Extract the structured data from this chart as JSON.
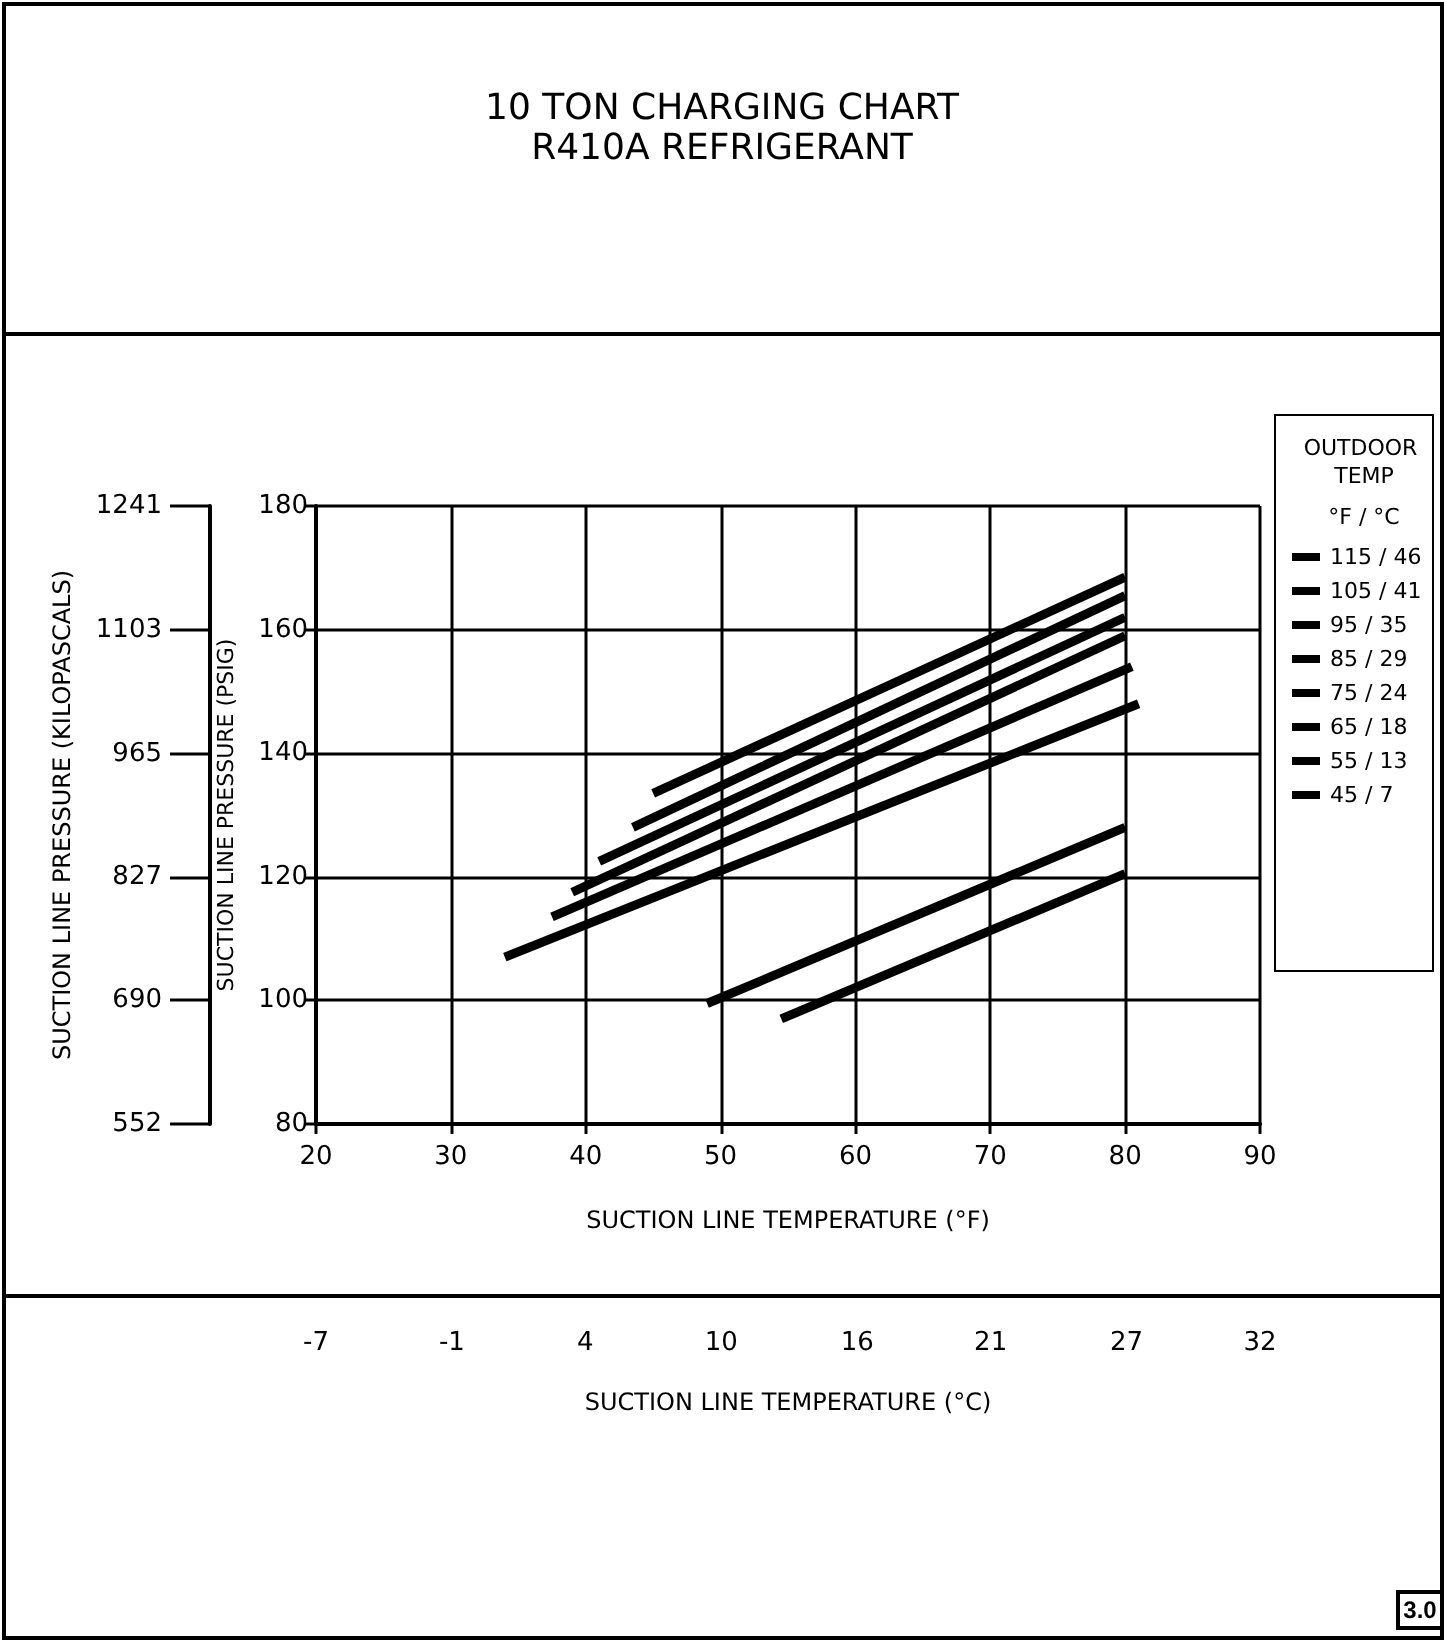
{
  "chart_data": {
    "type": "line",
    "title": "10 TON CHARGING CHART",
    "subtitle": "R410A REFRIGERANT",
    "xlabel": "SUCTION LINE TEMPERATURE (°F)",
    "ylabel": "SUCTION LINE PRESSURE (PSIG)",
    "y2label": "SUCTION LINE PRESSURE (KILOPASCALS)",
    "x2label": "SUCTION LINE TEMPERATURE (°C)",
    "legend_title": "OUTDOOR TEMP",
    "annotations": [
      "°F / °C",
      "3.0"
    ],
    "xlim": [
      20,
      90
    ],
    "xticks": [
      20,
      30,
      40,
      50,
      60,
      70,
      80,
      90
    ],
    "ylim": [
      80,
      180
    ],
    "yticks": [
      80,
      100,
      120,
      140,
      160,
      180
    ],
    "y2lim": [
      552,
      1241
    ],
    "y2ticks": [
      552,
      690,
      827,
      965,
      1103,
      1241
    ],
    "x2lim": [
      -6.7,
      32.2
    ],
    "x2ticks": [
      {
        "value": -6.7,
        "label": "-7"
      },
      {
        "value": -1.1,
        "label": "-1"
      },
      {
        "value": 4.4,
        "label": "4"
      },
      {
        "value": 10,
        "label": "10"
      },
      {
        "value": 15.6,
        "label": "16"
      },
      {
        "value": 21.1,
        "label": "21"
      },
      {
        "value": 26.7,
        "label": "27"
      },
      {
        "value": 32.2,
        "label": "32"
      }
    ],
    "series": [
      {
        "name": "115 / 46",
        "color": "#000000",
        "x": [
          45,
          80
        ],
        "values": [
          133.5,
          168.5
        ]
      },
      {
        "name": "105 / 41",
        "color": "#000000",
        "x": [
          43.5,
          80
        ],
        "values": [
          128,
          165.5
        ]
      },
      {
        "name": "95 / 35",
        "color": "#000000",
        "x": [
          41,
          80
        ],
        "values": [
          122.5,
          162
        ]
      },
      {
        "name": "85 / 29",
        "color": "#000000",
        "x": [
          39,
          80
        ],
        "values": [
          117.5,
          159
        ]
      },
      {
        "name": "75 / 24",
        "color": "#000000",
        "x": [
          37.5,
          80.5
        ],
        "values": [
          113.5,
          154
        ]
      },
      {
        "name": "65 / 18",
        "color": "#000000",
        "x": [
          34,
          81
        ],
        "values": [
          107,
          148
        ]
      },
      {
        "name": "55 / 13",
        "color": "#000000",
        "x": [
          49,
          80
        ],
        "values": [
          99.5,
          128
        ]
      },
      {
        "name": "45 / 7",
        "color": "#000000",
        "x": [
          54.5,
          80
        ],
        "values": [
          97,
          120.5
        ]
      }
    ],
    "grid": true,
    "legend": "right",
    "marker": "none",
    "line_style": "solid"
  }
}
